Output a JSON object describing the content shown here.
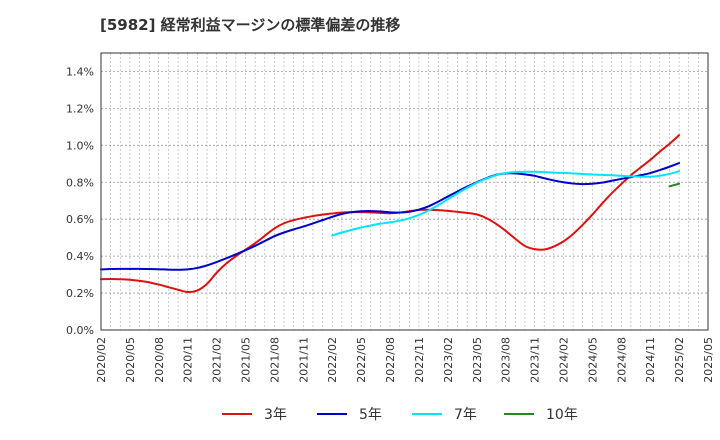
{
  "chart_data": {
    "type": "line",
    "title": "[5982]  経常利益マージンの標準偏差の推移",
    "xlabel": "",
    "ylabel": "",
    "ylim": [
      0,
      1.5
    ],
    "yticks": [
      {
        "value": 0.0,
        "label": "0.0%"
      },
      {
        "value": 0.2,
        "label": "0.2%"
      },
      {
        "value": 0.4,
        "label": "0.4%"
      },
      {
        "value": 0.6,
        "label": "0.6%"
      },
      {
        "value": 0.8,
        "label": "0.8%"
      },
      {
        "value": 1.0,
        "label": "1.0%"
      },
      {
        "value": 1.2,
        "label": "1.2%"
      },
      {
        "value": 1.4,
        "label": "1.4%"
      }
    ],
    "xticks": [
      "2020/02",
      "2020/05",
      "2020/08",
      "2020/11",
      "2021/02",
      "2021/05",
      "2021/08",
      "2021/11",
      "2022/02",
      "2022/05",
      "2022/08",
      "2022/11",
      "2023/02",
      "2023/05",
      "2023/08",
      "2023/11",
      "2024/02",
      "2024/05",
      "2024/08",
      "2024/11",
      "2025/02",
      "2025/05"
    ],
    "grid": true,
    "legend_position": "bottom",
    "series": [
      {
        "name": "3年",
        "color": "#dd1111",
        "points": [
          [
            "2020/02",
            0.275
          ],
          [
            "2020/03",
            0.276
          ],
          [
            "2020/04",
            0.275
          ],
          [
            "2020/05",
            0.272
          ],
          [
            "2020/06",
            0.266
          ],
          [
            "2020/07",
            0.258
          ],
          [
            "2020/08",
            0.246
          ],
          [
            "2020/09",
            0.232
          ],
          [
            "2020/10",
            0.218
          ],
          [
            "2020/11",
            0.206
          ],
          [
            "2020/12",
            0.214
          ],
          [
            "2021/01",
            0.25
          ],
          [
            "2021/02",
            0.31
          ],
          [
            "2021/03",
            0.36
          ],
          [
            "2021/04",
            0.4
          ],
          [
            "2021/05",
            0.435
          ],
          [
            "2021/06",
            0.47
          ],
          [
            "2021/07",
            0.51
          ],
          [
            "2021/08",
            0.55
          ],
          [
            "2021/09",
            0.578
          ],
          [
            "2021/10",
            0.595
          ],
          [
            "2021/11",
            0.607
          ],
          [
            "2021/12",
            0.617
          ],
          [
            "2022/01",
            0.625
          ],
          [
            "2022/02",
            0.631
          ],
          [
            "2022/03",
            0.636
          ],
          [
            "2022/04",
            0.638
          ],
          [
            "2022/05",
            0.638
          ],
          [
            "2022/06",
            0.637
          ],
          [
            "2022/07",
            0.634
          ],
          [
            "2022/08",
            0.632
          ],
          [
            "2022/09",
            0.636
          ],
          [
            "2022/10",
            0.643
          ],
          [
            "2022/11",
            0.65
          ],
          [
            "2022/12",
            0.651
          ],
          [
            "2023/01",
            0.649
          ],
          [
            "2023/02",
            0.645
          ],
          [
            "2023/03",
            0.64
          ],
          [
            "2023/04",
            0.634
          ],
          [
            "2023/05",
            0.626
          ],
          [
            "2023/06",
            0.606
          ],
          [
            "2023/07",
            0.575
          ],
          [
            "2023/08",
            0.537
          ],
          [
            "2023/09",
            0.494
          ],
          [
            "2023/10",
            0.455
          ],
          [
            "2023/11",
            0.438
          ],
          [
            "2023/12",
            0.436
          ],
          [
            "2024/01",
            0.452
          ],
          [
            "2024/02",
            0.48
          ],
          [
            "2024/03",
            0.52
          ],
          [
            "2024/04",
            0.57
          ],
          [
            "2024/05",
            0.625
          ],
          [
            "2024/06",
            0.684
          ],
          [
            "2024/07",
            0.74
          ],
          [
            "2024/08",
            0.79
          ],
          [
            "2024/09",
            0.838
          ],
          [
            "2024/10",
            0.88
          ],
          [
            "2024/11",
            0.921
          ],
          [
            "2024/12",
            0.966
          ],
          [
            "2025/01",
            1.008
          ],
          [
            "2025/02",
            1.055
          ]
        ]
      },
      {
        "name": "5年",
        "color": "#0000cc",
        "points": [
          [
            "2020/02",
            0.328
          ],
          [
            "2020/03",
            0.33
          ],
          [
            "2020/04",
            0.331
          ],
          [
            "2020/05",
            0.331
          ],
          [
            "2020/06",
            0.331
          ],
          [
            "2020/07",
            0.33
          ],
          [
            "2020/08",
            0.329
          ],
          [
            "2020/09",
            0.327
          ],
          [
            "2020/10",
            0.326
          ],
          [
            "2020/11",
            0.328
          ],
          [
            "2020/12",
            0.336
          ],
          [
            "2021/01",
            0.35
          ],
          [
            "2021/02",
            0.368
          ],
          [
            "2021/03",
            0.388
          ],
          [
            "2021/04",
            0.41
          ],
          [
            "2021/05",
            0.432
          ],
          [
            "2021/06",
            0.456
          ],
          [
            "2021/07",
            0.482
          ],
          [
            "2021/08",
            0.508
          ],
          [
            "2021/09",
            0.528
          ],
          [
            "2021/10",
            0.545
          ],
          [
            "2021/11",
            0.56
          ],
          [
            "2021/12",
            0.577
          ],
          [
            "2022/01",
            0.595
          ],
          [
            "2022/02",
            0.613
          ],
          [
            "2022/03",
            0.628
          ],
          [
            "2022/04",
            0.638
          ],
          [
            "2022/05",
            0.643
          ],
          [
            "2022/06",
            0.644
          ],
          [
            "2022/07",
            0.642
          ],
          [
            "2022/08",
            0.637
          ],
          [
            "2022/09",
            0.636
          ],
          [
            "2022/10",
            0.64
          ],
          [
            "2022/11",
            0.652
          ],
          [
            "2022/12",
            0.67
          ],
          [
            "2023/01",
            0.695
          ],
          [
            "2023/02",
            0.723
          ],
          [
            "2023/03",
            0.75
          ],
          [
            "2023/04",
            0.776
          ],
          [
            "2023/05",
            0.8
          ],
          [
            "2023/06",
            0.822
          ],
          [
            "2023/07",
            0.84
          ],
          [
            "2023/08",
            0.848
          ],
          [
            "2023/09",
            0.848
          ],
          [
            "2023/10",
            0.843
          ],
          [
            "2023/11",
            0.835
          ],
          [
            "2023/12",
            0.822
          ],
          [
            "2024/01",
            0.81
          ],
          [
            "2024/02",
            0.8
          ],
          [
            "2024/03",
            0.793
          ],
          [
            "2024/04",
            0.79
          ],
          [
            "2024/05",
            0.792
          ],
          [
            "2024/06",
            0.798
          ],
          [
            "2024/07",
            0.808
          ],
          [
            "2024/08",
            0.818
          ],
          [
            "2024/09",
            0.828
          ],
          [
            "2024/10",
            0.838
          ],
          [
            "2024/11",
            0.85
          ],
          [
            "2024/12",
            0.866
          ],
          [
            "2025/01",
            0.884
          ],
          [
            "2025/02",
            0.904
          ]
        ]
      },
      {
        "name": "7年",
        "color": "#00e5ff",
        "points": [
          [
            "2022/02",
            0.512
          ],
          [
            "2022/03",
            0.528
          ],
          [
            "2022/04",
            0.542
          ],
          [
            "2022/05",
            0.555
          ],
          [
            "2022/06",
            0.566
          ],
          [
            "2022/07",
            0.576
          ],
          [
            "2022/08",
            0.583
          ],
          [
            "2022/09",
            0.592
          ],
          [
            "2022/10",
            0.605
          ],
          [
            "2022/11",
            0.623
          ],
          [
            "2022/12",
            0.647
          ],
          [
            "2023/01",
            0.676
          ],
          [
            "2023/02",
            0.708
          ],
          [
            "2023/03",
            0.74
          ],
          [
            "2023/04",
            0.77
          ],
          [
            "2023/05",
            0.797
          ],
          [
            "2023/06",
            0.82
          ],
          [
            "2023/07",
            0.838
          ],
          [
            "2023/08",
            0.85
          ],
          [
            "2023/09",
            0.855
          ],
          [
            "2023/10",
            0.857
          ],
          [
            "2023/11",
            0.857
          ],
          [
            "2023/12",
            0.855
          ],
          [
            "2024/01",
            0.852
          ],
          [
            "2024/02",
            0.85
          ],
          [
            "2024/03",
            0.848
          ],
          [
            "2024/04",
            0.845
          ],
          [
            "2024/05",
            0.842
          ],
          [
            "2024/06",
            0.84
          ],
          [
            "2024/07",
            0.838
          ],
          [
            "2024/08",
            0.835
          ],
          [
            "2024/09",
            0.832
          ],
          [
            "2024/10",
            0.83
          ],
          [
            "2024/11",
            0.83
          ],
          [
            "2024/12",
            0.835
          ],
          [
            "2025/01",
            0.845
          ],
          [
            "2025/02",
            0.86
          ]
        ]
      },
      {
        "name": "10年",
        "color": "#228822",
        "points": [
          [
            "2025/01",
            0.778
          ],
          [
            "2025/02",
            0.792
          ]
        ]
      }
    ]
  }
}
